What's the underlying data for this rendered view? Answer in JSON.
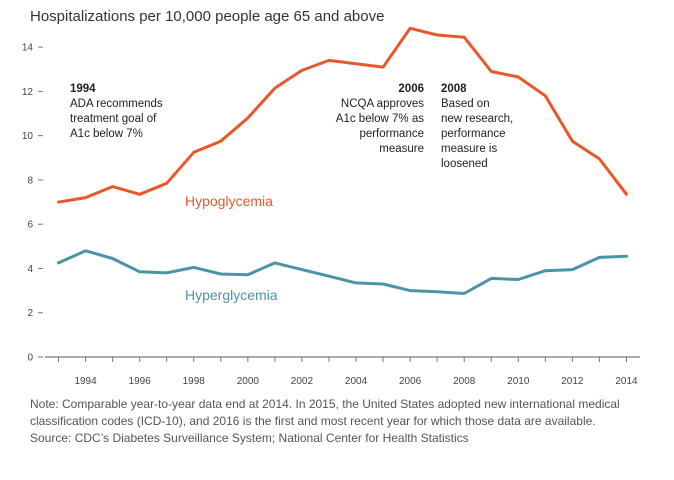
{
  "chart_data": {
    "type": "line",
    "title": "Hospitalizations per 10,000 people age 65 and above",
    "x": [
      1993,
      1994,
      1995,
      1996,
      1997,
      1998,
      1999,
      2000,
      2001,
      2002,
      2003,
      2004,
      2005,
      2006,
      2007,
      2008,
      2009,
      2010,
      2011,
      2012,
      2013,
      2014
    ],
    "xticks": [
      "1994",
      "1996",
      "1998",
      "2000",
      "2002",
      "2004",
      "2006",
      "2008",
      "2010",
      "2012",
      "2014"
    ],
    "yticks": [
      "0",
      "2",
      "4",
      "6",
      "8",
      "10",
      "12",
      "14"
    ],
    "xlim": [
      1992.5,
      2014.5
    ],
    "ylim": [
      0,
      15
    ],
    "grid": false,
    "series": [
      {
        "name": "Hypoglycemia",
        "color": "#e8582a",
        "values": [
          7.0,
          7.2,
          7.7,
          7.35,
          7.85,
          9.25,
          9.75,
          10.8,
          12.15,
          12.95,
          13.4,
          13.25,
          13.1,
          14.85,
          14.55,
          14.45,
          12.9,
          12.65,
          11.8,
          9.75,
          8.95,
          7.35
        ]
      },
      {
        "name": "Hyperglycemia",
        "color": "#4a94a8",
        "values": [
          4.25,
          4.8,
          4.45,
          3.85,
          3.8,
          4.05,
          3.75,
          3.72,
          4.25,
          3.95,
          3.65,
          3.35,
          3.3,
          3.0,
          2.95,
          2.87,
          3.55,
          3.5,
          3.9,
          3.95,
          4.5,
          4.55
        ]
      }
    ],
    "annotations": [
      {
        "year": "1994",
        "lines": [
          "ADA recommends",
          "treatment goal of",
          "A1c below 7%"
        ],
        "anchor": "start"
      },
      {
        "year": "2006",
        "lines": [
          "NCQA approves",
          "A1c below 7% as",
          "performance",
          "measure"
        ],
        "anchor": "end"
      },
      {
        "year": "2008",
        "lines": [
          "Based on",
          "new research,",
          "performance",
          "measure is",
          "loosened"
        ],
        "anchor": "start"
      }
    ]
  },
  "footer": {
    "note": "Note: Comparable year-to-year data end at 2014. In 2015, the United States adopted new international medical classification codes (ICD-10), and 2016 is the first and most recent year for which those data are available.",
    "source": "Source: CDC’s Diabetes Surveillance System; National Center for Health Statistics"
  }
}
